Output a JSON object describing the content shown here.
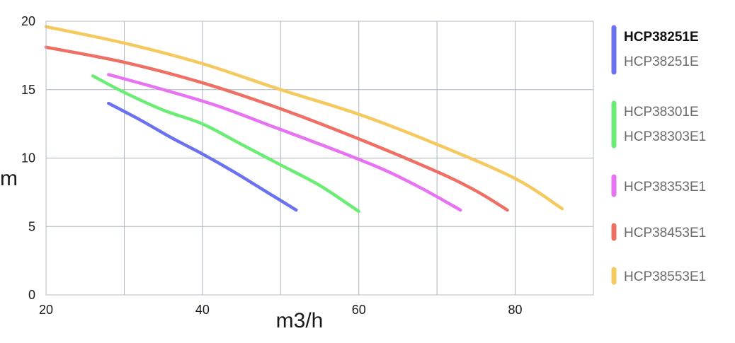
{
  "chart_data": {
    "type": "line",
    "title": "",
    "xlabel": "m3/h",
    "ylabel": "m",
    "xlim": [
      20,
      90
    ],
    "ylim": [
      0,
      20
    ],
    "x_ticks": [
      20,
      40,
      60,
      80
    ],
    "y_ticks": [
      0,
      5,
      10,
      15,
      20
    ],
    "grid": true,
    "legend_position": "right",
    "series": [
      {
        "name": "HCP38251E",
        "legend_labels": [
          "HCP38251E",
          "HCP38251E"
        ],
        "color": "#6a72f0",
        "points": [
          [
            28,
            14.0
          ],
          [
            32,
            12.8
          ],
          [
            36,
            11.5
          ],
          [
            40,
            10.3
          ],
          [
            44,
            9.0
          ],
          [
            48,
            7.6
          ],
          [
            52,
            6.2
          ]
        ]
      },
      {
        "name": "HCP38301E",
        "legend_labels": [
          "HCP38301E",
          "HCP38303E1"
        ],
        "color": "#6bec75",
        "points": [
          [
            26,
            16.0
          ],
          [
            30,
            14.8
          ],
          [
            35,
            13.5
          ],
          [
            40,
            12.5
          ],
          [
            45,
            11.0
          ],
          [
            50,
            9.5
          ],
          [
            55,
            8.0
          ],
          [
            60,
            6.1
          ]
        ]
      },
      {
        "name": "HCP38353E1",
        "legend_labels": [
          "HCP38353E1"
        ],
        "color": "#e772f2",
        "points": [
          [
            28,
            16.1
          ],
          [
            35,
            15.0
          ],
          [
            42,
            13.8
          ],
          [
            49,
            12.3
          ],
          [
            56,
            10.8
          ],
          [
            63,
            9.2
          ],
          [
            68,
            7.8
          ],
          [
            73,
            6.2
          ]
        ]
      },
      {
        "name": "HCP38453E1",
        "legend_labels": [
          "HCP38453E1"
        ],
        "color": "#ef6f65",
        "points": [
          [
            20,
            18.1
          ],
          [
            30,
            17.0
          ],
          [
            40,
            15.5
          ],
          [
            50,
            13.6
          ],
          [
            60,
            11.4
          ],
          [
            70,
            9.0
          ],
          [
            75,
            7.6
          ],
          [
            79,
            6.2
          ]
        ]
      },
      {
        "name": "HCP38553E1",
        "legend_labels": [
          "HCP38553E1"
        ],
        "color": "#f6c95f",
        "points": [
          [
            20,
            19.6
          ],
          [
            30,
            18.4
          ],
          [
            40,
            16.9
          ],
          [
            50,
            15.0
          ],
          [
            60,
            13.2
          ],
          [
            70,
            11.0
          ],
          [
            80,
            8.5
          ],
          [
            86,
            6.3
          ]
        ]
      }
    ]
  }
}
